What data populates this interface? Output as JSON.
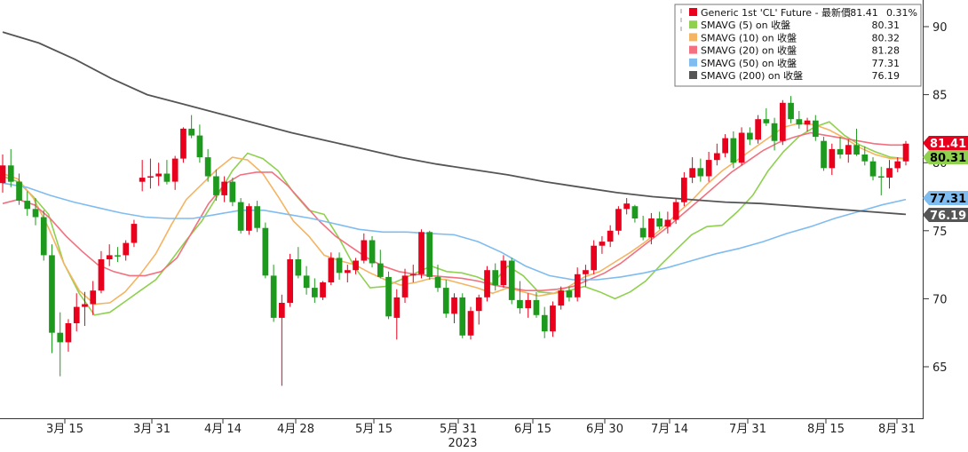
{
  "chart_data": {
    "type": "candlestick",
    "title": "",
    "year_label": "2023",
    "x_ticks": [
      "3月 15",
      "3月 31",
      "4月 14",
      "4月 28",
      "5月 15",
      "5月 31",
      "6月 15",
      "6月 30",
      "7月 14",
      "7月 31",
      "8月 15",
      "8月 31"
    ],
    "y_ticks": [
      "65",
      "70",
      "75",
      "80",
      "85",
      "90"
    ],
    "ylim": [
      60.5,
      92
    ],
    "grid": false,
    "legend_position": "top-right",
    "legend": [
      {
        "name": "Generic 1st 'CL' Future - 最新價",
        "value": "81.41",
        "change": "0.31%",
        "color": "#e8001c"
      },
      {
        "name": "SMAVG (5)  on 收盤",
        "value": "80.31",
        "color": "#8fd14f"
      },
      {
        "name": "SMAVG (10)  on 收盤",
        "value": "80.32",
        "color": "#f5b461"
      },
      {
        "name": "SMAVG (20)  on 收盤",
        "value": "81.28",
        "color": "#f2707f"
      },
      {
        "name": "SMAVG (50)  on 收盤",
        "value": "77.31",
        "color": "#7fbcf0"
      },
      {
        "name": "SMAVG (200)  on 收盤",
        "value": "76.19",
        "color": "#555555"
      }
    ],
    "last_value_tags": [
      {
        "value": "81.41",
        "bg": "#e8001c",
        "fg": "#ffffff"
      },
      {
        "value": "80.31",
        "bg": "#8fd14f",
        "fg": "#000000"
      },
      {
        "value": "77.31",
        "bg": "#7fbcf0",
        "fg": "#000000"
      },
      {
        "value": "76.19",
        "bg": "#555555",
        "fg": "#ffffff"
      }
    ],
    "candles": [
      [
        78.5,
        80.6,
        77.8,
        79.8
      ],
      [
        79.8,
        81.0,
        78.2,
        78.6
      ],
      [
        78.6,
        79.2,
        76.9,
        77.2
      ],
      [
        77.2,
        77.9,
        76.1,
        76.6
      ],
      [
        76.6,
        77.4,
        75.4,
        76.0
      ],
      [
        76.0,
        76.5,
        72.8,
        73.2
      ],
      [
        73.2,
        74.0,
        66.0,
        67.5
      ],
      [
        67.5,
        69.0,
        64.3,
        66.8
      ],
      [
        66.8,
        68.5,
        66.1,
        68.2
      ],
      [
        68.2,
        70.4,
        67.6,
        69.4
      ],
      [
        69.4,
        70.5,
        68.0,
        69.6
      ],
      [
        69.6,
        71.3,
        68.8,
        70.6
      ],
      [
        70.6,
        73.5,
        70.4,
        72.9
      ],
      [
        72.9,
        74.0,
        72.4,
        73.2
      ],
      [
        73.2,
        73.8,
        72.7,
        73.1
      ],
      [
        73.2,
        74.3,
        72.8,
        74.1
      ],
      [
        74.1,
        75.8,
        73.8,
        75.5
      ],
      [
        78.6,
        80.2,
        77.9,
        78.9
      ],
      [
        78.9,
        80.3,
        78.1,
        79.0
      ],
      [
        79.0,
        80.0,
        78.3,
        79.2
      ],
      [
        79.2,
        80.2,
        78.4,
        78.6
      ],
      [
        78.6,
        80.5,
        78.0,
        80.3
      ],
      [
        80.3,
        82.6,
        80.0,
        82.5
      ],
      [
        82.5,
        83.5,
        81.8,
        82.0
      ],
      [
        82.0,
        82.8,
        80.0,
        80.4
      ],
      [
        80.4,
        81.0,
        78.6,
        79.0
      ],
      [
        79.0,
        79.5,
        77.2,
        77.6
      ],
      [
        77.6,
        79.0,
        77.1,
        78.6
      ],
      [
        78.6,
        78.9,
        76.8,
        77.1
      ],
      [
        77.1,
        77.4,
        74.8,
        75.0
      ],
      [
        75.0,
        77.0,
        74.7,
        76.8
      ],
      [
        76.8,
        77.2,
        74.9,
        75.2
      ],
      [
        75.2,
        75.6,
        71.5,
        71.7
      ],
      [
        71.7,
        72.5,
        68.3,
        68.6
      ],
      [
        68.6,
        70.3,
        63.6,
        69.7
      ],
      [
        69.7,
        73.3,
        69.4,
        72.9
      ],
      [
        72.9,
        73.8,
        71.5,
        71.7
      ],
      [
        71.7,
        72.4,
        70.3,
        70.8
      ],
      [
        70.8,
        71.5,
        69.7,
        70.1
      ],
      [
        70.1,
        71.3,
        69.9,
        71.2
      ],
      [
        71.2,
        73.4,
        71.0,
        73.0
      ],
      [
        73.0,
        73.4,
        71.4,
        71.9
      ],
      [
        71.9,
        72.5,
        71.2,
        72.1
      ],
      [
        72.1,
        73.0,
        71.8,
        72.8
      ],
      [
        72.8,
        74.8,
        72.6,
        74.3
      ],
      [
        74.3,
        74.6,
        72.3,
        72.6
      ],
      [
        72.6,
        73.6,
        71.5,
        71.6
      ],
      [
        71.6,
        72.0,
        68.5,
        68.7
      ],
      [
        68.6,
        70.7,
        67.0,
        70.1
      ],
      [
        70.1,
        72.2,
        69.7,
        71.7
      ],
      [
        71.7,
        72.5,
        71.2,
        71.8
      ],
      [
        71.8,
        75.1,
        71.5,
        74.9
      ],
      [
        74.9,
        75.0,
        71.4,
        71.6
      ],
      [
        71.6,
        72.5,
        70.5,
        70.8
      ],
      [
        70.8,
        71.4,
        68.6,
        68.9
      ],
      [
        68.9,
        70.4,
        68.2,
        70.1
      ],
      [
        70.1,
        70.4,
        67.1,
        67.3
      ],
      [
        67.3,
        69.4,
        67.0,
        69.1
      ],
      [
        69.1,
        70.3,
        68.1,
        70.1
      ],
      [
        70.1,
        72.4,
        69.8,
        72.1
      ],
      [
        72.1,
        72.6,
        70.6,
        71.0
      ],
      [
        71.0,
        73.2,
        70.8,
        72.8
      ],
      [
        72.8,
        73.0,
        69.6,
        69.9
      ],
      [
        69.9,
        71.3,
        68.9,
        69.3
      ],
      [
        69.3,
        70.4,
        68.6,
        69.9
      ],
      [
        69.9,
        70.5,
        68.6,
        68.8
      ],
      [
        68.8,
        69.4,
        67.1,
        67.6
      ],
      [
        67.6,
        69.8,
        67.2,
        69.5
      ],
      [
        69.5,
        70.9,
        69.2,
        70.6
      ],
      [
        70.6,
        70.9,
        69.8,
        70.1
      ],
      [
        70.1,
        72.3,
        69.8,
        71.8
      ],
      [
        71.8,
        72.5,
        70.9,
        72.1
      ],
      [
        72.1,
        74.3,
        71.8,
        73.9
      ],
      [
        73.9,
        74.6,
        73.3,
        74.2
      ],
      [
        74.2,
        75.4,
        73.8,
        75.0
      ],
      [
        75.0,
        76.8,
        74.7,
        76.6
      ],
      [
        76.6,
        77.4,
        76.2,
        77.0
      ],
      [
        76.8,
        76.9,
        75.6,
        75.9
      ],
      [
        75.2,
        76.1,
        74.3,
        74.5
      ],
      [
        74.5,
        76.3,
        74.0,
        75.9
      ],
      [
        75.9,
        76.4,
        75.1,
        75.3
      ],
      [
        75.3,
        76.4,
        74.8,
        75.8
      ],
      [
        75.8,
        77.4,
        75.5,
        77.1
      ],
      [
        77.1,
        79.3,
        76.8,
        78.9
      ],
      [
        78.9,
        80.4,
        78.5,
        79.6
      ],
      [
        79.6,
        80.3,
        78.6,
        79.0
      ],
      [
        79.0,
        80.8,
        78.6,
        80.2
      ],
      [
        80.2,
        81.4,
        79.8,
        80.7
      ],
      [
        80.7,
        82.1,
        80.4,
        81.8
      ],
      [
        81.8,
        82.3,
        79.6,
        80.0
      ],
      [
        80.0,
        82.6,
        79.8,
        82.2
      ],
      [
        82.2,
        82.6,
        81.3,
        81.7
      ],
      [
        81.7,
        83.5,
        81.4,
        83.2
      ],
      [
        83.2,
        84.0,
        82.7,
        82.9
      ],
      [
        82.9,
        83.3,
        80.9,
        81.6
      ],
      [
        81.6,
        84.6,
        81.3,
        84.4
      ],
      [
        84.4,
        84.9,
        82.9,
        83.2
      ],
      [
        83.2,
        83.8,
        82.5,
        82.8
      ],
      [
        82.8,
        83.3,
        82.3,
        83.1
      ],
      [
        83.1,
        83.5,
        81.6,
        81.9
      ],
      [
        81.6,
        81.9,
        79.4,
        79.6
      ],
      [
        79.6,
        81.4,
        79.1,
        81.0
      ],
      [
        81.0,
        81.9,
        80.3,
        80.6
      ],
      [
        80.6,
        81.7,
        80.0,
        81.3
      ],
      [
        81.3,
        82.5,
        80.5,
        80.6
      ],
      [
        80.6,
        81.2,
        79.8,
        80.1
      ],
      [
        80.1,
        80.4,
        78.7,
        79.0
      ],
      [
        79.0,
        79.7,
        77.6,
        78.9
      ],
      [
        78.9,
        80.2,
        78.1,
        79.6
      ],
      [
        79.6,
        80.4,
        79.3,
        80.1
      ],
      [
        80.1,
        81.6,
        79.8,
        81.4
      ]
    ],
    "series": [
      {
        "name": "SMAVG (5)  on 收盤",
        "color": "#8fd14f",
        "y": [
          79.0,
          78.6,
          77.5,
          76.2,
          72.6,
          70.4,
          68.8,
          69.0,
          69.8,
          70.6,
          71.4,
          72.8,
          74.3,
          75.7,
          77.5,
          79.4,
          80.7,
          80.3,
          79.4,
          77.8,
          76.5,
          76.2,
          74.4,
          72.3,
          70.8,
          70.9,
          71.4,
          71.9,
          72.4,
          72.0,
          71.9,
          71.6,
          71.1,
          72.4,
          71.7,
          70.5,
          70.4,
          70.6,
          70.9,
          70.5,
          70.0,
          70.5,
          71.3,
          72.5,
          73.6,
          74.7,
          75.3,
          75.4,
          76.4,
          77.6,
          79.4,
          80.8,
          81.9,
          82.6,
          83.0,
          82.0,
          81.3,
          80.8,
          80.4,
          80.3
        ]
      },
      {
        "name": "SMAVG (10)  on 收盤",
        "color": "#f5b461",
        "y": [
          79.2,
          78.8,
          77.4,
          75.2,
          72.6,
          70.6,
          69.6,
          69.7,
          70.5,
          71.8,
          73.3,
          75.4,
          77.3,
          78.4,
          79.5,
          80.4,
          80.2,
          79.2,
          77.5,
          75.7,
          74.6,
          73.2,
          72.8,
          72.5,
          71.9,
          71.4,
          71.0,
          71.2,
          71.5,
          71.4,
          71.1,
          70.8,
          70.4,
          70.8,
          70.5,
          70.2,
          70.4,
          70.9,
          71.6,
          72.0,
          72.7,
          73.4,
          74.2,
          75.1,
          76.2,
          77.2,
          78.4,
          79.4,
          80.2,
          81.0,
          81.8,
          82.6,
          82.9,
          82.8,
          82.4,
          81.8,
          81.1,
          80.6,
          80.3,
          80.3
        ]
      },
      {
        "name": "SMAVG (20)  on 收盤",
        "color": "#f2707f",
        "y": [
          77.0,
          77.3,
          76.9,
          75.9,
          74.6,
          73.5,
          72.5,
          72.0,
          71.7,
          71.7,
          72.0,
          73.0,
          75.0,
          77.0,
          78.4,
          79.1,
          79.3,
          79.3,
          78.3,
          77.0,
          75.7,
          74.6,
          73.8,
          73.0,
          72.4,
          72.0,
          71.8,
          71.7,
          71.6,
          71.5,
          71.3,
          71.0,
          70.8,
          70.6,
          70.6,
          70.7,
          70.9,
          71.4,
          71.9,
          72.6,
          73.5,
          74.4,
          75.3,
          76.3,
          77.3,
          78.3,
          79.3,
          80.1,
          80.9,
          81.5,
          81.9,
          82.2,
          82.0,
          81.8,
          81.6,
          81.4,
          81.3,
          81.3
        ]
      },
      {
        "name": "SMAVG (50)  on 收盤",
        "color": "#7fbcf0",
        "y": [
          78.5,
          78.2,
          77.6,
          77.1,
          76.7,
          76.3,
          76.0,
          75.9,
          75.9,
          76.2,
          76.5,
          76.5,
          76.2,
          75.9,
          75.5,
          75.1,
          74.9,
          74.9,
          74.8,
          74.7,
          74.2,
          73.4,
          72.4,
          71.7,
          71.4,
          71.4,
          71.6,
          71.9,
          72.3,
          72.8,
          73.3,
          73.7,
          74.2,
          74.8,
          75.3,
          75.9,
          76.4,
          76.9,
          77.3
        ]
      },
      {
        "name": "SMAVG (200)  on 收盤",
        "color": "#555555",
        "y": [
          89.6,
          88.8,
          87.6,
          86.2,
          85.0,
          84.3,
          83.6,
          82.9,
          82.2,
          81.6,
          81.0,
          80.4,
          79.9,
          79.5,
          79.1,
          78.6,
          78.2,
          77.8,
          77.5,
          77.3,
          77.1,
          77.0,
          76.8,
          76.6,
          76.4,
          76.2
        ]
      }
    ]
  }
}
